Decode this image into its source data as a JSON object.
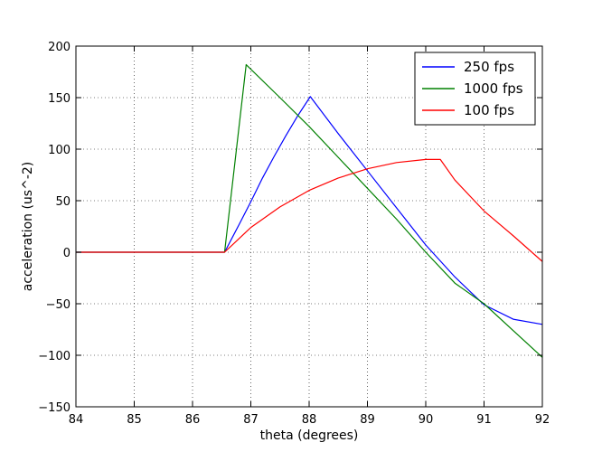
{
  "chart_data": {
    "type": "line",
    "title": "",
    "xlabel": "theta (degrees)",
    "ylabel": "acceleration (us^-2)",
    "xlim": [
      84,
      92
    ],
    "ylim": [
      -150,
      200
    ],
    "xticks": [
      84,
      85,
      86,
      87,
      88,
      89,
      90,
      91,
      92
    ],
    "yticks": [
      -150,
      -100,
      -50,
      0,
      50,
      100,
      150,
      200
    ],
    "xtick_labels": [
      "84",
      "85",
      "86",
      "87",
      "88",
      "89",
      "90",
      "91",
      "92"
    ],
    "ytick_labels": [
      "−150",
      "−100",
      "−50",
      "0",
      "50",
      "100",
      "150",
      "200"
    ],
    "grid": true,
    "legend_position": "top-right",
    "series": [
      {
        "name": "250 fps",
        "color": "#0000ff",
        "points": [
          [
            84,
            0
          ],
          [
            86.55,
            0
          ],
          [
            86.8,
            27
          ],
          [
            87.0,
            49
          ],
          [
            87.2,
            72
          ],
          [
            87.4,
            93
          ],
          [
            87.6,
            113
          ],
          [
            87.8,
            132
          ],
          [
            88.02,
            151
          ],
          [
            88.5,
            115
          ],
          [
            89.0,
            79
          ],
          [
            89.5,
            43
          ],
          [
            90.0,
            7
          ],
          [
            90.5,
            -24
          ],
          [
            91.0,
            -51
          ],
          [
            91.5,
            -65
          ],
          [
            92,
            -70
          ]
        ]
      },
      {
        "name": "1000 fps",
        "color": "#008000",
        "points": [
          [
            84,
            0
          ],
          [
            86.55,
            0
          ],
          [
            86.92,
            182
          ],
          [
            87.5,
            150
          ],
          [
            88.0,
            122
          ],
          [
            88.5,
            92
          ],
          [
            89.0,
            62
          ],
          [
            89.5,
            32
          ],
          [
            90.0,
            0
          ],
          [
            90.5,
            -30
          ],
          [
            91.0,
            -50
          ],
          [
            91.5,
            -76
          ],
          [
            92,
            -102
          ]
        ]
      },
      {
        "name": "100 fps",
        "color": "#ff0000",
        "points": [
          [
            84,
            0
          ],
          [
            86.55,
            0
          ],
          [
            87.0,
            24
          ],
          [
            87.5,
            44
          ],
          [
            88.0,
            60
          ],
          [
            88.5,
            72
          ],
          [
            89.0,
            81
          ],
          [
            89.5,
            87
          ],
          [
            90.0,
            90
          ],
          [
            90.25,
            90
          ],
          [
            90.5,
            70
          ],
          [
            91.0,
            40
          ],
          [
            91.5,
            16
          ],
          [
            92,
            -9
          ]
        ]
      }
    ]
  }
}
